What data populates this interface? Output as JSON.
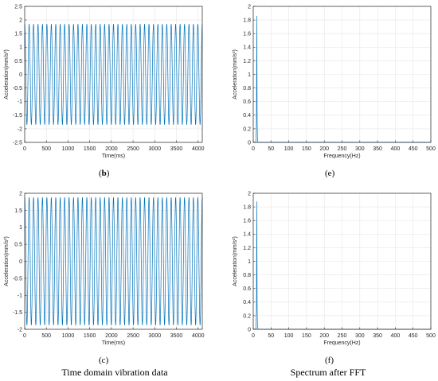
{
  "chart_data": [
    {
      "panel": "b",
      "type": "line",
      "xlabel": "Time(ms)",
      "ylabel": "Acceleration(mm/s²)",
      "xlim": [
        0,
        4096
      ],
      "ylim": [
        -2.5,
        2.5
      ],
      "xticks": [
        0,
        500,
        1000,
        1500,
        2000,
        2500,
        3000,
        3500,
        4000
      ],
      "yticks": [
        -2.5,
        -2,
        -1.5,
        -1,
        -0.5,
        0,
        0.5,
        1,
        1.5,
        2,
        2.5
      ],
      "grid": true,
      "signal": {
        "form": "sinusoid",
        "amplitude": 1.85,
        "cycles": 40,
        "start": 0,
        "end": 4096
      }
    },
    {
      "panel": "e",
      "type": "line",
      "xlabel": "Frequency(Hz)",
      "ylabel": "Acceleration(mm/s²)",
      "xlim": [
        0,
        500
      ],
      "ylim": [
        0,
        2
      ],
      "xticks": [
        0,
        50,
        100,
        150,
        200,
        250,
        300,
        350,
        400,
        450,
        500
      ],
      "yticks": [
        0,
        0.2,
        0.4,
        0.6,
        0.8,
        1,
        1.2,
        1.4,
        1.6,
        1.8,
        2
      ],
      "grid": true,
      "x": [
        0,
        7,
        8,
        9,
        10,
        11,
        12,
        13,
        14,
        500
      ],
      "y": [
        0,
        0,
        0.05,
        0.3,
        1.86,
        0.3,
        0.05,
        0.01,
        0,
        0
      ]
    },
    {
      "panel": "c",
      "type": "line",
      "xlabel": "Time(ms)",
      "ylabel": "Acceleration(mm/s²)",
      "xlim": [
        0,
        4096
      ],
      "ylim": [
        -2,
        2
      ],
      "xticks": [
        0,
        500,
        1000,
        1500,
        2000,
        2500,
        3000,
        3500,
        4000
      ],
      "yticks": [
        -2,
        -1.5,
        -1,
        -0.5,
        0,
        0.5,
        1,
        1.5,
        2
      ],
      "grid": true,
      "signal": {
        "form": "sinusoid",
        "amplitude": 1.88,
        "cycles": 40,
        "start": 0,
        "end": 4096
      }
    },
    {
      "panel": "f",
      "type": "line",
      "xlabel": "Frequency(Hz)",
      "ylabel": "Acceleration(mm/s²)",
      "xlim": [
        0,
        500
      ],
      "ylim": [
        0,
        2
      ],
      "xticks": [
        0,
        50,
        100,
        150,
        200,
        250,
        300,
        350,
        400,
        450,
        500
      ],
      "yticks": [
        0,
        0.2,
        0.4,
        0.6,
        0.8,
        1,
        1.2,
        1.4,
        1.6,
        1.8,
        2
      ],
      "grid": true,
      "x": [
        0,
        7,
        8,
        9,
        10,
        11,
        12,
        13,
        14,
        500
      ],
      "y": [
        0,
        0,
        0.05,
        0.3,
        1.88,
        0.3,
        0.05,
        0.01,
        0,
        0
      ]
    }
  ],
  "captions": {
    "b": "b",
    "e": "e",
    "c": "c",
    "f": "f",
    "left_bottom": "Time domain vibration data",
    "right_bottom": "Spectrum after FFT"
  },
  "colors": {
    "line": "#0072BD",
    "axis": "#262626",
    "grid": "#e6e6e6"
  }
}
